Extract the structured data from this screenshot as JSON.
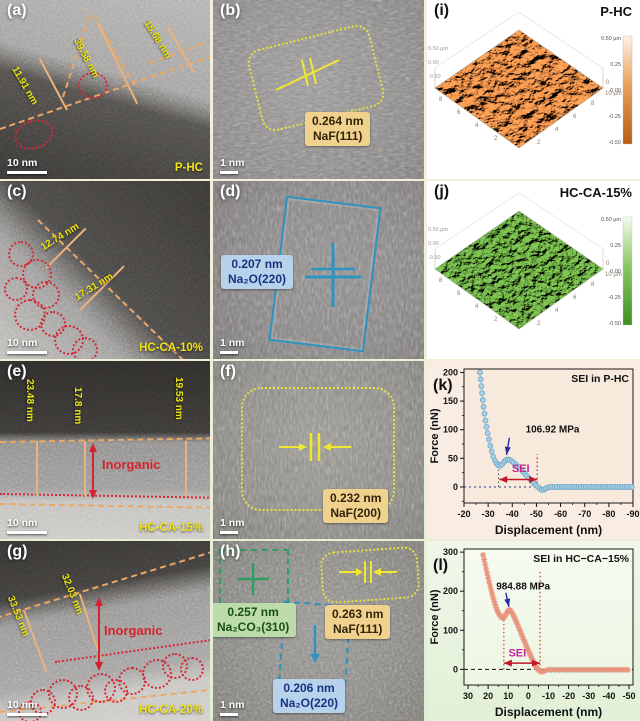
{
  "panels": {
    "a": {
      "id": "(a)",
      "sample": "P-HC",
      "scale": "10 nm",
      "m1": "39.58 nm",
      "m2": "15.68 nm",
      "m3": "11.91 nm"
    },
    "b": {
      "id": "(b)",
      "scale": "1 nm",
      "d_value": "0.264 nm",
      "phase": "NaF(111)"
    },
    "c": {
      "id": "(c)",
      "sample": "HC-CA-10%",
      "scale": "10 nm",
      "m1": "12.74 nm",
      "m2": "17.31 nm"
    },
    "d": {
      "id": "(d)",
      "scale": "1 nm",
      "d_value": "0.207 nm",
      "phase": "Na₂O(220)"
    },
    "e": {
      "id": "(e)",
      "sample": "HC-CA-15%",
      "scale": "10 nm",
      "m1": "23.48 nm",
      "m2": "17.8 nm",
      "m3": "19.53 nm",
      "layer": "Inorganic"
    },
    "f": {
      "id": "(f)",
      "scale": "1 nm",
      "d_value": "0.232 nm",
      "phase": "NaF(200)"
    },
    "g": {
      "id": "(g)",
      "sample": "HC-CA-20%",
      "scale": "10 nm",
      "m1": "33.53 nm",
      "m2": "32.03 nm",
      "layer": "Inorganic"
    },
    "h": {
      "id": "(h)",
      "scale": "1 nm",
      "d1": "0.257 nm",
      "p1": "Na₂CO₃(310)",
      "d2": "0.263 nm",
      "p2": "NaF(111)",
      "d3": "0.206 nm",
      "p3": "Na₂O(220)"
    },
    "i": {
      "id": "(i)",
      "sample": "P-HC",
      "colorbar": [
        "0.50 µm",
        "0.25",
        "0.00",
        "-0.25",
        "-0.50"
      ],
      "ticks": [
        "2",
        "4",
        "6",
        "8"
      ],
      "corner0": "0",
      "corner10": "10 µm",
      "zleft": [
        "0.50 µm",
        "0.00",
        "-0.50"
      ]
    },
    "j": {
      "id": "(j)",
      "sample": "HC-CA-15%",
      "colorbar": [
        "0.50 µm",
        "0.25",
        "0.00",
        "-0.25",
        "-0.50"
      ],
      "ticks": [
        "2",
        "4",
        "6",
        "8"
      ],
      "corner0": "0",
      "corner10": "10 µm",
      "zleft": [
        "0.50 µm",
        "0.00",
        "-0.50"
      ]
    },
    "k": {
      "id": "(k)"
    },
    "l": {
      "id": "(l)"
    }
  },
  "chart_data": [
    {
      "type": "scatter",
      "panel": "k",
      "title": "SEI in P-HC",
      "xlabel": "Displacement (nm)",
      "ylabel": "Force (nN)",
      "xlim": [
        -20,
        -90
      ],
      "ylim": [
        -28,
        206
      ],
      "xticks": [
        -20,
        -30,
        -40,
        -50,
        -60,
        -70,
        -80,
        -90
      ],
      "yticks": [
        0,
        50,
        100,
        150,
        200
      ],
      "xminor": 5,
      "yminor": 25,
      "plot_bg": "#f8e9dd",
      "marker": "circle",
      "marker_color": "#a9d0e2",
      "marker_stroke": "#6fa8c8",
      "line_color": "#a9d0e2",
      "zero_color": "#223a8c",
      "zero_dash": "2,3",
      "vlines": [
        {
          "x": -34.3,
          "y1": 0,
          "y2": 37,
          "color": "#666666"
        },
        {
          "x": -50.3,
          "y1": 0,
          "y2": 57,
          "color": "#cc2030"
        }
      ],
      "sei": {
        "label": "SEI",
        "x1": -34.6,
        "x2": -50.3,
        "y": 13,
        "label_x": -43.5,
        "label_y": 26,
        "color": "#c01828",
        "label_color": "#c02890"
      },
      "annotation": {
        "text": "106.92 MPa",
        "text_x": -45.5,
        "text_y": 95,
        "arrow": [
          -38.8,
          86,
          -37.6,
          56
        ],
        "arrow_color": "#2a2a9a"
      },
      "points": [
        [
          -26.6,
          200
        ],
        [
          -26.9,
          188
        ],
        [
          -27.2,
          176
        ],
        [
          -27.5,
          164
        ],
        [
          -27.8,
          152
        ],
        [
          -28.1,
          140
        ],
        [
          -28.5,
          128
        ],
        [
          -28.9,
          116
        ],
        [
          -29.3,
          105
        ],
        [
          -29.8,
          94
        ],
        [
          -30.3,
          83
        ],
        [
          -30.9,
          72
        ],
        [
          -31.5,
          62
        ],
        [
          -32.1,
          53
        ],
        [
          -32.8,
          46
        ],
        [
          -33.5,
          41
        ],
        [
          -34.2,
          38
        ],
        [
          -35,
          37
        ],
        [
          -35.8,
          40
        ],
        [
          -36.6,
          44
        ],
        [
          -37.4,
          47
        ],
        [
          -38.2,
          48
        ],
        [
          -39,
          47
        ],
        [
          -39.8,
          45
        ],
        [
          -40.7,
          42
        ],
        [
          -41.6,
          39
        ],
        [
          -42.5,
          35
        ],
        [
          -43.4,
          31
        ],
        [
          -44.3,
          27
        ],
        [
          -45.2,
          23
        ],
        [
          -46.1,
          19
        ],
        [
          -47,
          15
        ],
        [
          -47.9,
          11
        ],
        [
          -48.8,
          7
        ],
        [
          -49.7,
          3
        ],
        [
          -50.6,
          0
        ],
        [
          -51.4,
          -3
        ],
        [
          -52.2,
          -5
        ],
        [
          -53,
          -5
        ],
        [
          -53.8,
          -3
        ],
        [
          -54.6,
          -1
        ]
      ],
      "tail": {
        "from": -55.5,
        "to": -89.5,
        "step": 1,
        "y": 0,
        "jitter": 0.6
      }
    },
    {
      "type": "scatter",
      "panel": "l",
      "title": "SEI in HC−CA−15%",
      "xlabel": "Displacement (nm)",
      "ylabel": "Force (nN)",
      "xlim": [
        32,
        -52
      ],
      "ylim": [
        -40,
        308
      ],
      "xticks": [
        30,
        20,
        10,
        0,
        -10,
        -20,
        -30,
        -40,
        -50
      ],
      "yticks": [
        0,
        100,
        200,
        300
      ],
      "xminor": 5,
      "yminor": 50,
      "plot_bg": "#edf6e3",
      "plot_bg2": "#f6faf0",
      "marker": "star",
      "marker_color": "#e8937c",
      "marker_stroke": "#e8937c",
      "line_color": "#f0b5a2",
      "zero_color": "#111111",
      "zero_dash": "4,3",
      "vlines": [
        {
          "x": 12.2,
          "y1": 0,
          "y2": 132,
          "color": "#cc4030"
        },
        {
          "x": -5.8,
          "y1": 0,
          "y2": 250,
          "color": "#cc4030"
        }
      ],
      "sei": {
        "label": "SEI",
        "x1": 12.2,
        "x2": -5.8,
        "y": 16,
        "label_x": 5.5,
        "label_y": 33,
        "color": "#c01828",
        "label_color": "#c028a0"
      },
      "annotation": {
        "text": "984.88 MPa",
        "text_x": 16,
        "text_y": 205,
        "arrow": [
          11.2,
          196,
          9.7,
          160
        ],
        "arrow_color": "#2a2a9a"
      },
      "points": [
        [
          22.5,
          293
        ],
        [
          22,
          281
        ],
        [
          21.5,
          269
        ],
        [
          21,
          257
        ],
        [
          20.5,
          246
        ],
        [
          20,
          235
        ],
        [
          19.5,
          224
        ],
        [
          19,
          213
        ],
        [
          18.5,
          203
        ],
        [
          18,
          193
        ],
        [
          17.5,
          183
        ],
        [
          17,
          174
        ],
        [
          16.5,
          166
        ],
        [
          16,
          158
        ],
        [
          15.5,
          151
        ],
        [
          15,
          145
        ],
        [
          14.4,
          140
        ],
        [
          13.8,
          136
        ],
        [
          13.2,
          133
        ],
        [
          12.6,
          132
        ],
        [
          12,
          134
        ],
        [
          11.4,
          139
        ],
        [
          10.8,
          144
        ],
        [
          10.2,
          149
        ],
        [
          9.6,
          152
        ],
        [
          9,
          151
        ],
        [
          8.4,
          147
        ],
        [
          7.8,
          142
        ],
        [
          7.2,
          136
        ],
        [
          6.6,
          129
        ],
        [
          6,
          122
        ],
        [
          5.4,
          115
        ],
        [
          4.8,
          107
        ],
        [
          4.2,
          100
        ],
        [
          3.6,
          92
        ],
        [
          3,
          85
        ],
        [
          2.4,
          77
        ],
        [
          1.8,
          70
        ],
        [
          1.2,
          62
        ],
        [
          0.6,
          55
        ],
        [
          0,
          48
        ],
        [
          -0.6,
          41
        ],
        [
          -1.2,
          34
        ],
        [
          -1.8,
          27
        ],
        [
          -2.4,
          21
        ],
        [
          -3,
          15
        ],
        [
          -3.6,
          9
        ],
        [
          -4.2,
          4
        ],
        [
          -4.8,
          0
        ],
        [
          -5.4,
          -3
        ],
        [
          -6,
          -5
        ],
        [
          -6.8,
          -6
        ],
        [
          -7.6,
          -5
        ],
        [
          -8.4,
          -3
        ]
      ],
      "tail": {
        "from": -9.5,
        "to": -49.5,
        "step": 1,
        "y": -1,
        "jitter": 0.8
      }
    }
  ]
}
